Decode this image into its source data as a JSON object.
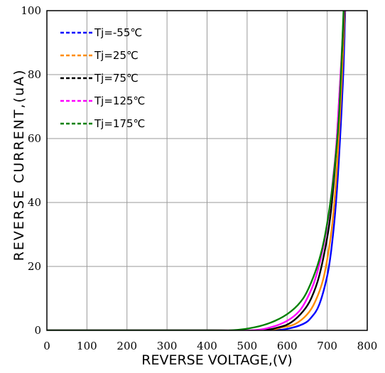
{
  "chart_data": {
    "type": "line",
    "xlabel": "REVERSE VOLTAGE,(V)",
    "ylabel": "REVERSE CURRENT,(uA)",
    "xlim": [
      0,
      800
    ],
    "ylim": [
      0,
      100
    ],
    "x_ticks": [
      "0",
      "100",
      "200",
      "300",
      "400",
      "500",
      "600",
      "700",
      "800"
    ],
    "y_ticks": [
      "0",
      "20",
      "40",
      "60",
      "80",
      "100"
    ],
    "grid": true,
    "legend_position": "top-left",
    "series": [
      {
        "name": "Tj=-55℃",
        "color": "#0000ff",
        "x": [
          0,
          400,
          550,
          600,
          640,
          660,
          680,
          700,
          710,
          720,
          730,
          740,
          745
        ],
        "y": [
          0,
          0,
          0,
          0.5,
          2,
          4,
          8,
          17,
          25,
          37,
          55,
          80,
          100
        ]
      },
      {
        "name": "Tj=25℃",
        "color": "#ff8c00",
        "x": [
          0,
          400,
          540,
          590,
          620,
          650,
          670,
          690,
          705,
          715,
          725,
          735,
          744
        ],
        "y": [
          0,
          0,
          0,
          1,
          2,
          5,
          9,
          16,
          26,
          36,
          52,
          75,
          100
        ]
      },
      {
        "name": "Tj=75℃",
        "color": "#000000",
        "x": [
          0,
          400,
          530,
          580,
          610,
          640,
          660,
          680,
          700,
          710,
          720,
          730,
          743
        ],
        "y": [
          0,
          0,
          0,
          1,
          2.5,
          6,
          10,
          17,
          29,
          38,
          52,
          72,
          100
        ]
      },
      {
        "name": "Tj=125℃",
        "color": "#ff00ff",
        "x": [
          0,
          400,
          510,
          560,
          600,
          630,
          650,
          670,
          690,
          705,
          715,
          725,
          742
        ],
        "y": [
          0,
          0,
          0,
          1,
          3,
          6,
          10,
          16,
          26,
          37,
          48,
          62,
          100
        ]
      },
      {
        "name": "Tj=175℃",
        "color": "#008000",
        "x": [
          0,
          400,
          460,
          520,
          570,
          610,
          640,
          660,
          680,
          695,
          710,
          720,
          730,
          741
        ],
        "y": [
          0,
          0,
          0,
          1,
          3,
          6,
          10,
          15,
          22,
          30,
          42,
          53,
          68,
          100
        ]
      }
    ]
  }
}
